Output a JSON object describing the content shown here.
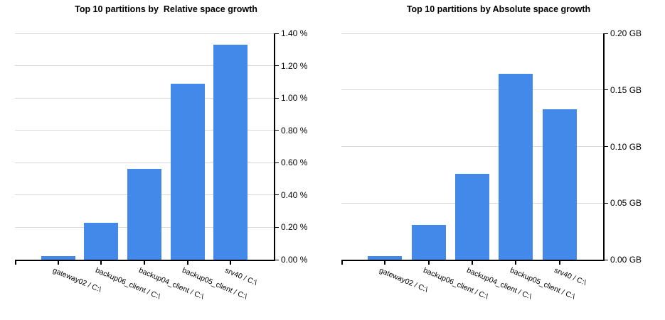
{
  "page": {
    "background_color": "#ffffff"
  },
  "chart_data": [
    {
      "type": "bar",
      "title": "Top 10 partitions by  Relative space growth",
      "categories": [
        "gateway02 / C:\\",
        "backup06_client / C:\\",
        "backup04_client / C:\\",
        "backup05_client / C:\\",
        "srv40 / C:\\"
      ],
      "values": [
        0.02,
        0.23,
        0.56,
        1.09,
        1.33
      ],
      "unit": "%",
      "ylim": [
        0,
        1.4
      ],
      "ytick_step": 0.2,
      "ytick_labels": [
        "0.00 %",
        "0.20 %",
        "0.40 %",
        "0.60 %",
        "0.80 %",
        "1.00 %",
        "1.20 %",
        "1.40 %"
      ],
      "value_axis_side": "right",
      "grid": true,
      "legend": "none",
      "bar_color": "#4289ea",
      "axis_color": "#000000",
      "grid_color": "#d9d9d9"
    },
    {
      "type": "bar",
      "title": "Top 10 partitions by Absolute space growth",
      "categories": [
        "gateway02 / C:\\",
        "backup06_client / C:\\",
        "backup04_client / C:\\",
        "backup05_client / C:\\",
        "srv40 / C:\\"
      ],
      "values": [
        0.003,
        0.031,
        0.076,
        0.164,
        0.133
      ],
      "unit": "GB",
      "ylim": [
        0,
        0.2
      ],
      "ytick_step": 0.05,
      "ytick_labels": [
        "0.00 GB",
        "0.05 GB",
        "0.10 GB",
        "0.15 GB",
        "0.20 GB"
      ],
      "value_axis_side": "right",
      "grid": true,
      "legend": "none",
      "bar_color": "#4289ea",
      "axis_color": "#000000",
      "grid_color": "#d9d9d9"
    }
  ]
}
